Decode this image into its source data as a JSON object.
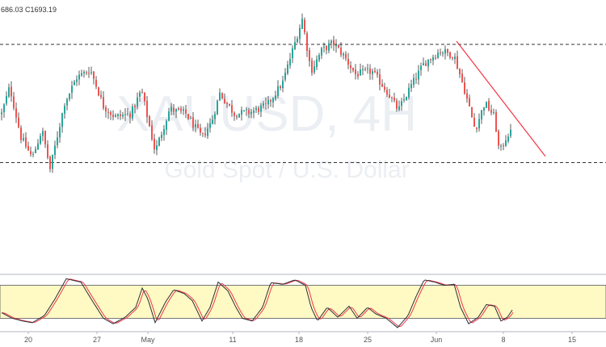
{
  "header": {
    "ohlc_text": "686.03  C1693.19"
  },
  "watermark": {
    "symbol": "XAUUSD, 4H",
    "description": "Gold Spot / U.S. Dollar"
  },
  "colors": {
    "up": "#26a69a",
    "down": "#ef5350",
    "wick": "#333333",
    "trendline": "#f23645",
    "band_fill": "#fff9c4",
    "stoch_k": "#2a2e39",
    "stoch_d": "#f23645"
  },
  "chart_data": [
    {
      "type": "candlestick",
      "title": "",
      "ylim": [
        1662,
        1772
      ],
      "grid": false,
      "support_level": 1674,
      "resistance_level": 1749,
      "trendline": {
        "from": {
          "x": 565,
          "y": 1751
        },
        "to": {
          "x": 675,
          "y": 1678
        }
      },
      "waypoints": [
        {
          "x": 2,
          "y": 1705
        },
        {
          "x": 12,
          "y": 1722
        },
        {
          "x": 26,
          "y": 1690
        },
        {
          "x": 40,
          "y": 1677
        },
        {
          "x": 52,
          "y": 1695
        },
        {
          "x": 62,
          "y": 1670
        },
        {
          "x": 80,
          "y": 1712
        },
        {
          "x": 95,
          "y": 1728
        },
        {
          "x": 112,
          "y": 1733
        },
        {
          "x": 128,
          "y": 1710
        },
        {
          "x": 142,
          "y": 1703
        },
        {
          "x": 162,
          "y": 1705
        },
        {
          "x": 175,
          "y": 1720
        },
        {
          "x": 192,
          "y": 1681
        },
        {
          "x": 210,
          "y": 1708
        },
        {
          "x": 230,
          "y": 1705
        },
        {
          "x": 250,
          "y": 1690
        },
        {
          "x": 262,
          "y": 1700
        },
        {
          "x": 272,
          "y": 1718
        },
        {
          "x": 290,
          "y": 1705
        },
        {
          "x": 310,
          "y": 1706
        },
        {
          "x": 330,
          "y": 1710
        },
        {
          "x": 350,
          "y": 1725
        },
        {
          "x": 362,
          "y": 1745
        },
        {
          "x": 374,
          "y": 1765
        },
        {
          "x": 385,
          "y": 1732
        },
        {
          "x": 398,
          "y": 1745
        },
        {
          "x": 412,
          "y": 1750
        },
        {
          "x": 425,
          "y": 1742
        },
        {
          "x": 440,
          "y": 1730
        },
        {
          "x": 460,
          "y": 1732
        },
        {
          "x": 478,
          "y": 1720
        },
        {
          "x": 493,
          "y": 1707
        },
        {
          "x": 508,
          "y": 1722
        },
        {
          "x": 525,
          "y": 1737
        },
        {
          "x": 545,
          "y": 1745
        },
        {
          "x": 562,
          "y": 1742
        },
        {
          "x": 575,
          "y": 1720
        },
        {
          "x": 588,
          "y": 1695
        },
        {
          "x": 600,
          "y": 1712
        },
        {
          "x": 612,
          "y": 1703
        },
        {
          "x": 618,
          "y": 1680
        },
        {
          "x": 628,
          "y": 1692
        },
        {
          "x": 634,
          "y": 1693
        }
      ]
    },
    {
      "type": "line",
      "name": "stochastic",
      "ylim": [
        0,
        100
      ],
      "band": [
        20,
        80
      ],
      "waypoints": [
        {
          "x": 2,
          "y": 30
        },
        {
          "x": 15,
          "y": 20
        },
        {
          "x": 28,
          "y": 15
        },
        {
          "x": 40,
          "y": 12
        },
        {
          "x": 55,
          "y": 25
        },
        {
          "x": 68,
          "y": 55
        },
        {
          "x": 82,
          "y": 92
        },
        {
          "x": 100,
          "y": 86
        },
        {
          "x": 115,
          "y": 50
        },
        {
          "x": 128,
          "y": 20
        },
        {
          "x": 140,
          "y": 10
        },
        {
          "x": 155,
          "y": 22
        },
        {
          "x": 168,
          "y": 40
        },
        {
          "x": 176,
          "y": 75
        },
        {
          "x": 183,
          "y": 55
        },
        {
          "x": 192,
          "y": 12
        },
        {
          "x": 205,
          "y": 50
        },
        {
          "x": 215,
          "y": 72
        },
        {
          "x": 228,
          "y": 65
        },
        {
          "x": 238,
          "y": 52
        },
        {
          "x": 250,
          "y": 15
        },
        {
          "x": 260,
          "y": 40
        },
        {
          "x": 270,
          "y": 86
        },
        {
          "x": 282,
          "y": 70
        },
        {
          "x": 292,
          "y": 40
        },
        {
          "x": 300,
          "y": 20
        },
        {
          "x": 312,
          "y": 15
        },
        {
          "x": 325,
          "y": 40
        },
        {
          "x": 335,
          "y": 85
        },
        {
          "x": 350,
          "y": 82
        },
        {
          "x": 365,
          "y": 90
        },
        {
          "x": 378,
          "y": 80
        },
        {
          "x": 385,
          "y": 40
        },
        {
          "x": 393,
          "y": 15
        },
        {
          "x": 405,
          "y": 40
        },
        {
          "x": 418,
          "y": 22
        },
        {
          "x": 432,
          "y": 42
        },
        {
          "x": 442,
          "y": 20
        },
        {
          "x": 455,
          "y": 40
        },
        {
          "x": 465,
          "y": 28
        },
        {
          "x": 478,
          "y": 20
        },
        {
          "x": 492,
          "y": 3
        },
        {
          "x": 505,
          "y": 25
        },
        {
          "x": 515,
          "y": 60
        },
        {
          "x": 525,
          "y": 90
        },
        {
          "x": 538,
          "y": 86
        },
        {
          "x": 550,
          "y": 80
        },
        {
          "x": 562,
          "y": 82
        },
        {
          "x": 570,
          "y": 40
        },
        {
          "x": 580,
          "y": 10
        },
        {
          "x": 592,
          "y": 22
        },
        {
          "x": 602,
          "y": 45
        },
        {
          "x": 612,
          "y": 42
        },
        {
          "x": 620,
          "y": 15
        },
        {
          "x": 628,
          "y": 22
        },
        {
          "x": 634,
          "y": 35
        }
      ]
    }
  ],
  "x_axis_ticks": [
    {
      "label": "20",
      "x": 35
    },
    {
      "label": "27",
      "x": 120
    },
    {
      "label": "May",
      "x": 183
    },
    {
      "label": "11",
      "x": 288
    },
    {
      "label": "18",
      "x": 370
    },
    {
      "label": "25",
      "x": 455
    },
    {
      "label": "Jun",
      "x": 540
    },
    {
      "label": "8",
      "x": 623
    },
    {
      "label": "15",
      "x": 708
    }
  ]
}
